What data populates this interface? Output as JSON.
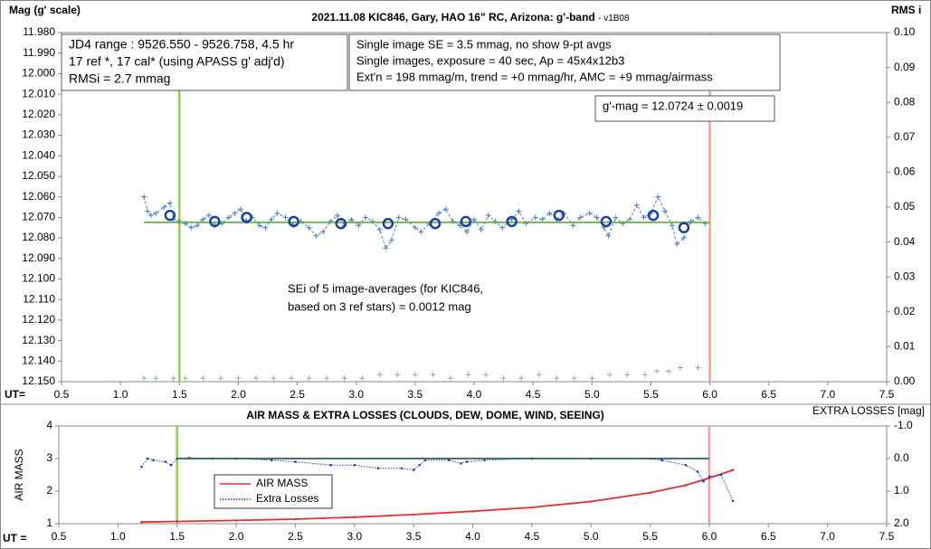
{
  "chart_data": [
    {
      "type": "line",
      "title": "2021.11.08 KIC846, Gary, HAO 16\" RC, Arizona: g'-band",
      "version": "- v1B08",
      "ylabel": "Mag (g' scale)",
      "y2label": "RMS i",
      "xlabel": "UT=",
      "xlim": [
        0.5,
        7.5
      ],
      "xticks": [
        0.5,
        {
          "value": 1.0,
          "label": "1.0"
        },
        1.5,
        {
          "value": 2.0,
          "label": "2.0"
        },
        2.5,
        {
          "value": 3.0,
          "label": "3.0"
        },
        3.5,
        {
          "value": 4.0,
          "label": "4.0"
        },
        4.5,
        {
          "value": 5.0,
          "label": "5.0"
        },
        5.5,
        {
          "value": 6.0,
          "label": "6.0"
        },
        6.5,
        {
          "value": 7.0,
          "label": "7.0"
        },
        7.5
      ],
      "ylim": [
        12.15,
        11.98
      ],
      "yticks": [
        {
          "value": 11.98,
          "label": "11.980"
        },
        {
          "value": 11.99,
          "label": "11.990"
        },
        {
          "value": 12.0,
          "label": "12.000"
        },
        {
          "value": 12.01,
          "label": "12.010"
        },
        {
          "value": 12.02,
          "label": "12.020"
        },
        {
          "value": 12.03,
          "label": "12.030"
        },
        {
          "value": 12.04,
          "label": "12.040"
        },
        {
          "value": 12.05,
          "label": "12.050"
        },
        {
          "value": 12.06,
          "label": "12.060"
        },
        {
          "value": 12.07,
          "label": "12.070"
        },
        {
          "value": 12.08,
          "label": "12.080"
        },
        {
          "value": 12.09,
          "label": "12.090"
        },
        {
          "value": 12.1,
          "label": "12.100"
        },
        {
          "value": 12.11,
          "label": "12.110"
        },
        {
          "value": 12.12,
          "label": "12.120"
        },
        {
          "value": 12.13,
          "label": "12.130"
        },
        {
          "value": 12.14,
          "label": "12.140"
        },
        {
          "value": 12.15,
          "label": "12.150"
        }
      ],
      "y2lim": [
        0,
        0.1
      ],
      "y2ticks": [
        {
          "value": 0,
          "label": "0.00"
        },
        {
          "value": 0.01,
          "label": "0.01"
        },
        {
          "value": 0.02,
          "label": "0.02"
        },
        {
          "value": 0.03,
          "label": "0.03"
        },
        {
          "value": 0.04,
          "label": "0.04"
        },
        {
          "value": 0.05,
          "label": "0.05"
        },
        {
          "value": 0.06,
          "label": "0.06"
        },
        {
          "value": 0.07,
          "label": "0.07"
        },
        {
          "value": 0.08,
          "label": "0.08"
        },
        {
          "value": 0.09,
          "label": "0.09"
        },
        {
          "value": 0.1,
          "label": "0.10"
        }
      ],
      "vlines": [
        {
          "x": 1.5,
          "color": "#92d050"
        },
        {
          "x": 6.0,
          "color": "#f4a0a0"
        }
      ],
      "series": [
        {
          "color": "#4f81bd",
          "marker": "plus",
          "line": "dashed",
          "x": [
            1.2,
            1.23,
            1.26,
            1.3,
            1.37,
            1.42,
            1.45,
            1.5,
            1.55,
            1.6,
            1.65,
            1.7,
            1.75,
            1.8,
            1.86,
            1.92,
            1.97,
            2.02,
            2.07,
            2.12,
            2.18,
            2.23,
            2.28,
            2.33,
            2.4,
            2.47,
            2.53,
            2.6,
            2.66,
            2.72,
            2.78,
            2.84,
            2.9,
            2.96,
            3.02,
            3.08,
            3.14,
            3.2,
            3.25,
            3.3,
            3.36,
            3.42,
            3.5,
            3.55,
            3.62,
            3.7,
            3.76,
            3.82,
            3.88,
            3.94,
            4.0,
            4.06,
            4.12,
            4.18,
            4.24,
            4.32,
            4.38,
            4.44,
            4.52,
            4.58,
            4.64,
            4.7,
            4.76,
            4.84,
            4.9,
            4.98,
            5.04,
            5.1,
            5.14,
            5.2,
            5.26,
            5.32,
            5.38,
            5.44,
            5.5,
            5.56,
            5.62,
            5.68,
            5.72,
            5.78,
            5.84,
            5.9,
            5.96
          ],
          "values": [
            12.06,
            12.067,
            12.069,
            12.068,
            12.065,
            12.063,
            12.071,
            12.072,
            12.073,
            12.075,
            12.074,
            12.071,
            12.069,
            12.074,
            12.073,
            12.07,
            12.068,
            12.066,
            12.072,
            12.07,
            12.074,
            12.075,
            12.071,
            12.068,
            12.07,
            12.074,
            12.072,
            12.075,
            12.079,
            12.077,
            12.072,
            12.069,
            12.074,
            12.071,
            12.074,
            12.07,
            12.072,
            12.076,
            12.085,
            12.081,
            12.07,
            12.071,
            12.075,
            12.077,
            12.073,
            12.068,
            12.066,
            12.072,
            12.074,
            12.077,
            12.071,
            12.076,
            12.069,
            12.072,
            12.075,
            12.071,
            12.067,
            12.073,
            12.07,
            12.071,
            12.068,
            12.071,
            12.068,
            12.074,
            12.07,
            12.068,
            12.07,
            12.075,
            12.079,
            12.07,
            12.073,
            12.071,
            12.064,
            12.07,
            12.068,
            12.06,
            12.067,
            12.074,
            12.083,
            12.08,
            12.072,
            12.07,
            12.073
          ]
        },
        {
          "color": "#6ab04c",
          "marker": "none",
          "line": "solid",
          "x": [
            1.2,
            6.0
          ],
          "values": [
            12.0724,
            12.0724
          ]
        },
        {
          "color": "#1f3f9f",
          "marker": "circle",
          "line": "none",
          "x": [
            1.42,
            1.8,
            2.07,
            2.47,
            2.87,
            3.27,
            3.67,
            3.93,
            4.32,
            4.72,
            5.12,
            5.52,
            5.78
          ],
          "values": [
            12.069,
            12.072,
            12.07,
            12.072,
            12.073,
            12.073,
            12.073,
            12.072,
            12.072,
            12.069,
            12.072,
            12.069,
            12.075
          ]
        },
        {
          "color": "#7fb2b2",
          "marker": "plus",
          "line": "none",
          "axis": "y2",
          "x": [
            1.2,
            1.3,
            1.45,
            1.55,
            1.7,
            1.85,
            2.0,
            2.15,
            2.3,
            2.45,
            2.6,
            2.75,
            2.9,
            3.05,
            3.2,
            3.35,
            3.5,
            3.65,
            3.8,
            3.95,
            4.1,
            4.25,
            4.4,
            4.55,
            4.7,
            4.85,
            5.0,
            5.15,
            5.3,
            5.45,
            5.55,
            5.65,
            5.75,
            5.9
          ],
          "values": [
            0.001,
            0.001,
            0.001,
            0.001,
            0.001,
            0.001,
            0.001,
            0.001,
            0.001,
            0.001,
            0.001,
            0.001,
            0.001,
            0.001,
            0.002,
            0.002,
            0.002,
            0.002,
            0.001,
            0.002,
            0.002,
            0.001,
            0.001,
            0.002,
            0.001,
            0.001,
            0.001,
            0.002,
            0.002,
            0.002,
            0.003,
            0.003,
            0.004,
            0.004
          ]
        }
      ],
      "annotations": [
        {
          "lines": [
            "JD4 range : 9526.550 - 9526.758,  4.5  hr",
            "17 ref *, 17 cal* (using APASS g' adj'd)",
            "RMSi = 2.7 mmag"
          ]
        },
        {
          "lines": [
            "Single image SE = 3.5 mmag, no show  9-pt avgs",
            "Single images, exposure = 40 sec, Ap = 45x4x12b3",
            "Ext'n = 198 mmag/m, trend = +0 mmag/hr, AMC = +9 mmag/airmass"
          ]
        },
        {
          "lines": [
            "g'-mag = 12.0724 ± 0.0019"
          ]
        },
        {
          "lines": [
            "SEi of 5 image-averages (for KIC846,",
            "based on 3 ref stars) = 0.0012 mag"
          ]
        }
      ]
    },
    {
      "type": "line",
      "title": "AIR MASS & EXTRA LOSSES (CLOUDS, DEW, DOME, WIND, SEEING)",
      "ylabel": "AIR MASS",
      "y2label": "EXTRA LOSSES [mag]",
      "xlabel": "UT =",
      "xlim": [
        0.5,
        7.5
      ],
      "xticks": [
        0.5,
        {
          "value": 1.0,
          "label": "1.0"
        },
        1.5,
        {
          "value": 2.0,
          "label": "2.0"
        },
        2.5,
        {
          "value": 3.0,
          "label": "3.0"
        },
        3.5,
        {
          "value": 4.0,
          "label": "4.0"
        },
        4.5,
        {
          "value": 5.0,
          "label": "5.0"
        },
        5.5,
        {
          "value": 6.0,
          "label": "6.0"
        },
        6.5,
        {
          "value": 7.0,
          "label": "7.0"
        },
        7.5
      ],
      "ylim": [
        1,
        4
      ],
      "yticks": [
        1,
        2,
        3,
        4
      ],
      "y2lim": [
        2.0,
        -1.0
      ],
      "y2ticks": [
        {
          "value": -1.0,
          "label": "-1.0"
        },
        {
          "value": 0.0,
          "label": "0.0"
        },
        {
          "value": 1.0,
          "label": "1.0"
        },
        {
          "value": 2.0,
          "label": "2.0"
        }
      ],
      "vlines": [
        {
          "x": 1.5,
          "color": "#92d050"
        },
        {
          "x": 6.0,
          "color": "#f4a0a0"
        }
      ],
      "series": [
        {
          "name": "AIR MASS",
          "color": "#e03030",
          "marker": "dot",
          "line": "solid",
          "x": [
            1.2,
            1.5,
            2.0,
            2.5,
            3.0,
            3.5,
            4.0,
            4.5,
            5.0,
            5.5,
            5.8,
            6.0,
            6.2
          ],
          "values": [
            1.05,
            1.07,
            1.1,
            1.14,
            1.2,
            1.28,
            1.38,
            1.5,
            1.68,
            1.95,
            2.18,
            2.4,
            2.65
          ]
        },
        {
          "name": "Extra Losses",
          "color": "#1f3fbf",
          "marker": "dot",
          "line": "dotted",
          "axis": "y2",
          "x": [
            1.2,
            1.25,
            1.3,
            1.4,
            1.45,
            1.5,
            1.6,
            1.8,
            2.0,
            2.3,
            2.5,
            2.8,
            3.0,
            3.2,
            3.4,
            3.5,
            3.55,
            3.6,
            3.8,
            3.9,
            3.95,
            4.1,
            4.5,
            5.0,
            5.5,
            5.6,
            5.8,
            5.9,
            5.95,
            6.0,
            6.1,
            6.2
          ],
          "values": [
            0.25,
            0.0,
            0.05,
            0.1,
            0.2,
            0.0,
            -0.02,
            0.0,
            0.0,
            0.05,
            0.1,
            0.2,
            0.2,
            0.3,
            0.3,
            0.35,
            0.2,
            0.05,
            0.05,
            0.15,
            0.1,
            0.05,
            0.0,
            0.0,
            0.0,
            0.05,
            0.2,
            0.4,
            0.7,
            0.55,
            0.5,
            1.3
          ]
        },
        {
          "color": "#2f5f5f",
          "marker": "none",
          "line": "solid",
          "axis": "y2",
          "x": [
            1.5,
            6.0
          ],
          "values": [
            0.0,
            0.0
          ]
        }
      ]
    }
  ]
}
